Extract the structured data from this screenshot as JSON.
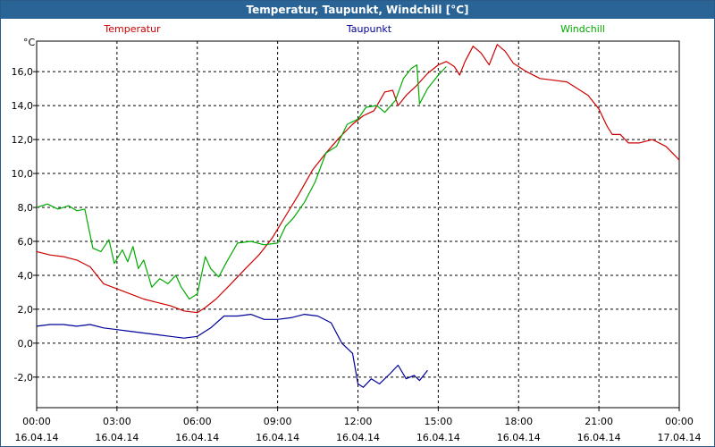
{
  "window": {
    "title": "Temperatur, Taupunkt, Windchill [°C]"
  },
  "chart_data": {
    "type": "line",
    "title": "Temperatur, Taupunkt, Windchill [°C]",
    "ylabel": "°C",
    "ylim": [
      -3.8,
      17.8
    ],
    "xlim": [
      0,
      24
    ],
    "yticks": [
      -2,
      0,
      2,
      4,
      6,
      8,
      10,
      12,
      14,
      16
    ],
    "ytick_labels": [
      "-2,0",
      "0,0",
      "2,0",
      "4,0",
      "6,0",
      "8,0",
      "10,0",
      "12,0",
      "14,0",
      "16,0"
    ],
    "xticks": [
      {
        "x": 0,
        "time": "00:00",
        "date": "16.04.14"
      },
      {
        "x": 3,
        "time": "03:00",
        "date": "16.04.14"
      },
      {
        "x": 6,
        "time": "06:00",
        "date": "16.04.14"
      },
      {
        "x": 9,
        "time": "09:00",
        "date": "16.04.14"
      },
      {
        "x": 12,
        "time": "12:00",
        "date": "16.04.14"
      },
      {
        "x": 15,
        "time": "15:00",
        "date": "16.04.14"
      },
      {
        "x": 18,
        "time": "18:00",
        "date": "16.04.14"
      },
      {
        "x": 21,
        "time": "21:00",
        "date": "16.04.14"
      },
      {
        "x": 24,
        "time": "00:00",
        "date": "17.04.14"
      }
    ],
    "grid": true,
    "legend_position": "top",
    "series": [
      {
        "name": "Temperatur",
        "color": "#cc0000",
        "points": [
          [
            0,
            5.4
          ],
          [
            0.5,
            5.2
          ],
          [
            1,
            5.1
          ],
          [
            1.5,
            4.9
          ],
          [
            2,
            4.5
          ],
          [
            2.5,
            3.5
          ],
          [
            3,
            3.2
          ],
          [
            3.5,
            2.9
          ],
          [
            4,
            2.6
          ],
          [
            4.5,
            2.4
          ],
          [
            5,
            2.2
          ],
          [
            5.5,
            1.9
          ],
          [
            6,
            1.8
          ],
          [
            6.3,
            2.1
          ],
          [
            6.7,
            2.6
          ],
          [
            7.2,
            3.4
          ],
          [
            7.8,
            4.4
          ],
          [
            8.3,
            5.2
          ],
          [
            8.8,
            6.2
          ],
          [
            9.3,
            7.5
          ],
          [
            9.8,
            8.8
          ],
          [
            10.3,
            10.2
          ],
          [
            10.8,
            11.2
          ],
          [
            11.3,
            12.1
          ],
          [
            11.8,
            12.9
          ],
          [
            12.2,
            13.4
          ],
          [
            12.6,
            13.7
          ],
          [
            13,
            14.8
          ],
          [
            13.3,
            14.9
          ],
          [
            13.5,
            14.0
          ],
          [
            13.8,
            14.6
          ],
          [
            14.2,
            15.2
          ],
          [
            14.6,
            15.9
          ],
          [
            15,
            16.4
          ],
          [
            15.3,
            16.6
          ],
          [
            15.6,
            16.3
          ],
          [
            15.8,
            15.8
          ],
          [
            16,
            16.6
          ],
          [
            16.3,
            17.5
          ],
          [
            16.6,
            17.1
          ],
          [
            16.9,
            16.4
          ],
          [
            17.2,
            17.6
          ],
          [
            17.5,
            17.2
          ],
          [
            17.8,
            16.5
          ],
          [
            18.3,
            16.0
          ],
          [
            18.8,
            15.6
          ],
          [
            19.3,
            15.5
          ],
          [
            19.8,
            15.4
          ],
          [
            20.2,
            15.0
          ],
          [
            20.6,
            14.6
          ],
          [
            21,
            13.8
          ],
          [
            21.3,
            12.8
          ],
          [
            21.5,
            12.3
          ],
          [
            21.8,
            12.3
          ],
          [
            22.1,
            11.8
          ],
          [
            22.5,
            11.8
          ],
          [
            23,
            12.0
          ],
          [
            23.5,
            11.6
          ],
          [
            24,
            10.8
          ]
        ]
      },
      {
        "name": "Taupunkt",
        "color": "#000099",
        "points": [
          [
            0,
            1.0
          ],
          [
            0.5,
            1.1
          ],
          [
            1,
            1.1
          ],
          [
            1.5,
            1.0
          ],
          [
            2,
            1.1
          ],
          [
            2.5,
            0.9
          ],
          [
            3,
            0.8
          ],
          [
            3.5,
            0.7
          ],
          [
            4,
            0.6
          ],
          [
            4.5,
            0.5
          ],
          [
            5,
            0.4
          ],
          [
            5.5,
            0.3
          ],
          [
            6,
            0.4
          ],
          [
            6.5,
            0.9
          ],
          [
            7,
            1.6
          ],
          [
            7.5,
            1.6
          ],
          [
            8,
            1.7
          ],
          [
            8.5,
            1.4
          ],
          [
            9,
            1.4
          ],
          [
            9.5,
            1.5
          ],
          [
            10,
            1.7
          ],
          [
            10.5,
            1.6
          ],
          [
            11,
            1.2
          ],
          [
            11.4,
            0.0
          ],
          [
            11.8,
            -0.6
          ],
          [
            12,
            -2.4
          ],
          [
            12.2,
            -2.6
          ],
          [
            12.5,
            -2.1
          ],
          [
            12.8,
            -2.4
          ],
          [
            13.2,
            -1.8
          ],
          [
            13.5,
            -1.3
          ],
          [
            13.8,
            -2.1
          ],
          [
            14.1,
            -1.9
          ],
          [
            14.3,
            -2.2
          ],
          [
            14.6,
            -1.6
          ]
        ]
      },
      {
        "name": "Windchill",
        "color": "#00aa00",
        "points": [
          [
            0,
            8.0
          ],
          [
            0.4,
            8.2
          ],
          [
            0.8,
            7.9
          ],
          [
            1.2,
            8.1
          ],
          [
            1.5,
            7.8
          ],
          [
            1.8,
            7.9
          ],
          [
            2.1,
            5.6
          ],
          [
            2.4,
            5.4
          ],
          [
            2.7,
            6.1
          ],
          [
            2.9,
            4.7
          ],
          [
            3.2,
            5.5
          ],
          [
            3.4,
            4.8
          ],
          [
            3.6,
            5.7
          ],
          [
            3.8,
            4.4
          ],
          [
            4,
            4.9
          ],
          [
            4.3,
            3.3
          ],
          [
            4.6,
            3.8
          ],
          [
            4.9,
            3.5
          ],
          [
            5.2,
            4.0
          ],
          [
            5.4,
            3.3
          ],
          [
            5.7,
            2.6
          ],
          [
            6,
            2.9
          ],
          [
            6.3,
            5.1
          ],
          [
            6.5,
            4.4
          ],
          [
            6.8,
            3.9
          ],
          [
            7.1,
            4.8
          ],
          [
            7.5,
            5.9
          ],
          [
            8,
            6.0
          ],
          [
            8.5,
            5.8
          ],
          [
            9,
            5.9
          ],
          [
            9.3,
            6.9
          ],
          [
            9.6,
            7.4
          ],
          [
            10,
            8.3
          ],
          [
            10.4,
            9.5
          ],
          [
            10.8,
            11.2
          ],
          [
            11.2,
            11.6
          ],
          [
            11.6,
            12.9
          ],
          [
            12,
            13.2
          ],
          [
            12.3,
            13.9
          ],
          [
            12.7,
            14.0
          ],
          [
            13,
            13.6
          ],
          [
            13.4,
            14.3
          ],
          [
            13.7,
            15.6
          ],
          [
            14,
            16.2
          ],
          [
            14.2,
            16.4
          ],
          [
            14.3,
            14.1
          ],
          [
            14.6,
            15.0
          ],
          [
            15,
            15.8
          ],
          [
            15.3,
            16.3
          ]
        ]
      }
    ]
  }
}
